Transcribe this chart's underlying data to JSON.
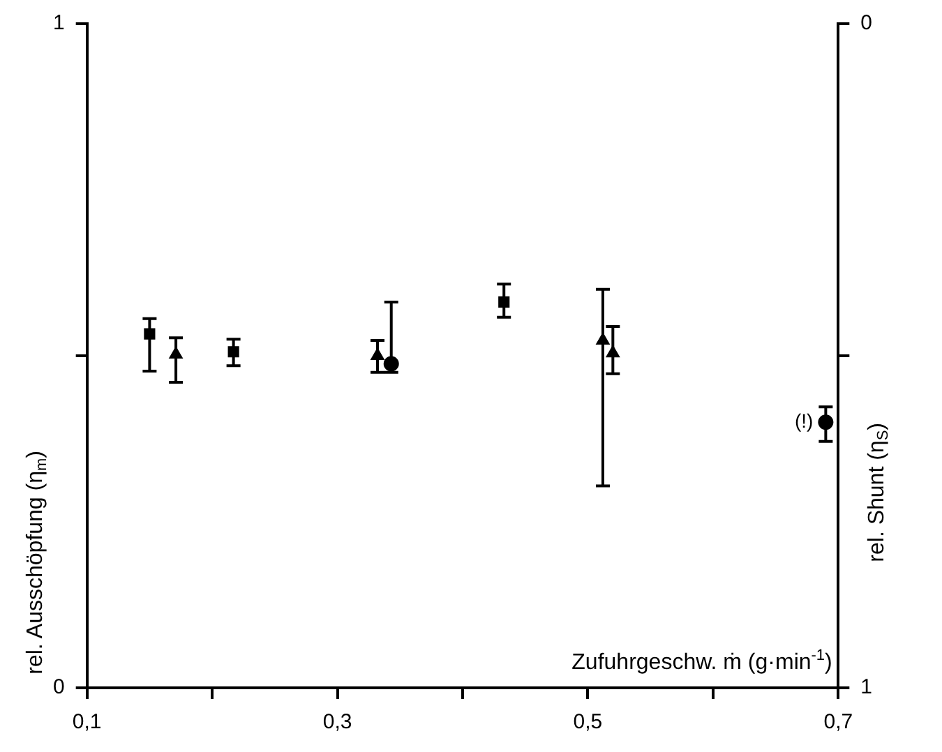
{
  "chart_data": {
    "type": "scatter",
    "ylabel": "rel. Ausschöpfung    (η$_{m}$)",
    "y2label": "rel. Shunt    (η$_{S}$)",
    "xlabel": "Zufuhrgeschw. ṁ (g·min$^{-1}$)",
    "xlim": [
      0.1,
      0.7
    ],
    "xticks": [
      {
        "value": 0.1,
        "label": "0,1"
      },
      {
        "value": 0.2,
        "label": null
      },
      {
        "value": 0.3,
        "label": "0,3"
      },
      {
        "value": 0.4,
        "label": null
      },
      {
        "value": 0.5,
        "label": "0,5"
      },
      {
        "value": 0.6,
        "label": null
      },
      {
        "value": 0.7,
        "label": "0,7"
      }
    ],
    "ylim": [
      0,
      1
    ],
    "yticks": [
      0,
      {
        "value": 0.5,
        "label": null
      },
      1
    ],
    "y2lim": [
      1,
      0
    ],
    "y2ticks": [
      0,
      {
        "value": 0.5,
        "label": null
      },
      1
    ],
    "grid": false,
    "legend": false,
    "series": [
      {
        "color": "#000000",
        "marker": "square",
        "x": [
          0.15,
          0.217,
          0.433
        ],
        "values": [
          0.533,
          0.506,
          0.581
        ],
        "errors": [
          [
            0.477,
            0.556
          ],
          [
            0.485,
            0.525
          ],
          [
            0.558,
            0.608
          ]
        ]
      },
      {
        "color": "#000000",
        "marker": "triangle",
        "x": [
          0.171,
          0.332,
          0.52
        ],
        "values": [
          0.502,
          0.5,
          0.504
        ],
        "errors": [
          [
            0.46,
            0.527
          ],
          [
            0.475,
            0.523
          ],
          [
            0.473,
            0.544
          ]
        ]
      },
      {
        "color": "#000000",
        "marker": "circle",
        "x": [
          0.343,
          0.69
        ],
        "values": [
          0.488,
          0.4
        ],
        "errors": [
          [
            0.475,
            0.581
          ],
          [
            0.371,
            0.423
          ]
        ]
      },
      {
        "color": "#000000",
        "marker": "triangle",
        "x": [
          0.512
        ],
        "values": [
          0.523
        ],
        "errors": [
          [
            0.304,
            0.6
          ]
        ]
      }
    ],
    "annotations": [
      {
        "text": "(!)",
        "x": 0.69,
        "y": 0.4
      }
    ]
  }
}
